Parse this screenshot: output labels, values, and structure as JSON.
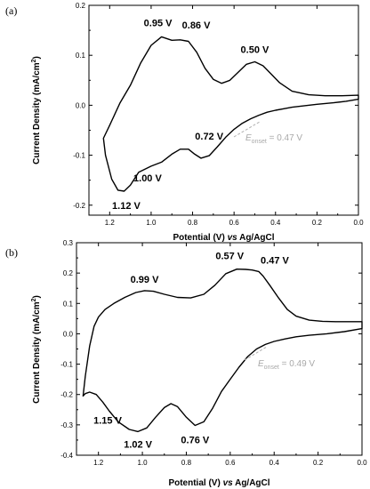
{
  "chart_data": [
    {
      "panel": "(a)",
      "type": "line",
      "xlabel_prefix": "Potential (V) ",
      "xlabel_italic": "vs",
      "xlabel_suffix": " Ag/AgCl",
      "ylabel": "Current Density (mA/cm",
      "ylabel_sup": "2",
      "ylabel_close": ")",
      "xlim": [
        1.3,
        0.0
      ],
      "ylim": [
        -0.22,
        0.2
      ],
      "x_ticks": [
        1.2,
        1.0,
        0.8,
        0.6,
        0.4,
        0.2,
        0.0
      ],
      "x_tick_labels": [
        "1.2",
        "1.0",
        "0.8",
        "0.6",
        "0.4",
        "0.2",
        "0.0"
      ],
      "y_ticks": [
        0.2,
        0.1,
        0.0,
        -0.1,
        -0.2
      ],
      "y_tick_labels": [
        "0.2",
        "0.1",
        "0.0",
        "-0.1",
        "-0.2"
      ],
      "grid": false,
      "curve_x": [
        0.0,
        0.08,
        0.16,
        0.24,
        0.32,
        0.38,
        0.42,
        0.46,
        0.5,
        0.54,
        0.58,
        0.62,
        0.66,
        0.7,
        0.74,
        0.78,
        0.82,
        0.86,
        0.9,
        0.95,
        1.0,
        1.05,
        1.1,
        1.15,
        1.2,
        1.23,
        1.22,
        1.19,
        1.16,
        1.13,
        1.1,
        1.06,
        1.0,
        0.95,
        0.9,
        0.86,
        0.82,
        0.79,
        0.76,
        0.72,
        0.68,
        0.64,
        0.6,
        0.56,
        0.52,
        0.48,
        0.44,
        0.4,
        0.36,
        0.32,
        0.26,
        0.2,
        0.12,
        0.06,
        0.0
      ],
      "curve_y": [
        0.02,
        0.019,
        0.019,
        0.021,
        0.028,
        0.045,
        0.062,
        0.079,
        0.087,
        0.082,
        0.066,
        0.05,
        0.044,
        0.052,
        0.074,
        0.106,
        0.128,
        0.131,
        0.13,
        0.137,
        0.12,
        0.085,
        0.04,
        0.005,
        -0.04,
        -0.066,
        -0.1,
        -0.148,
        -0.17,
        -0.172,
        -0.16,
        -0.134,
        -0.122,
        -0.114,
        -0.098,
        -0.088,
        -0.088,
        -0.098,
        -0.106,
        -0.101,
        -0.083,
        -0.064,
        -0.048,
        -0.036,
        -0.027,
        -0.02,
        -0.014,
        -0.01,
        -0.007,
        -0.004,
        -0.001,
        0.002,
        0.005,
        0.008,
        0.012
      ],
      "peak_labels": [
        {
          "text": "0.95 V",
          "x": 0.95,
          "y": 0.137
        },
        {
          "text": "0.86 V",
          "x": 0.86,
          "y": 0.131
        },
        {
          "text": "0.50 V",
          "x": 0.5,
          "y": 0.087
        },
        {
          "text": "1.12 V",
          "x": 1.12,
          "y": -0.172
        },
        {
          "text": "1.00 V",
          "x": 1.0,
          "y": -0.122
        },
        {
          "text": "0.72 V",
          "x": 0.72,
          "y": -0.101
        }
      ],
      "onset": {
        "label_main": "E",
        "label_sub": "onset",
        "label_value": " = 0.47 V",
        "x": 0.47,
        "y": -0.016
      }
    },
    {
      "panel": "(b)",
      "type": "line",
      "xlabel_prefix": "Potential (V) ",
      "xlabel_italic": "vs",
      "xlabel_suffix": " Ag/AgCl",
      "ylabel": "Current Density (mA/cm",
      "ylabel_sup": "2",
      "ylabel_close": ")",
      "xlim": [
        1.3,
        0.0
      ],
      "ylim": [
        -0.4,
        0.3
      ],
      "x_ticks": [
        1.2,
        1.0,
        0.8,
        0.6,
        0.4,
        0.2,
        0.0
      ],
      "x_tick_labels": [
        "1.2",
        "1.0",
        "0.8",
        "0.6",
        "0.4",
        "0.2",
        "0.0"
      ],
      "y_ticks": [
        0.3,
        0.2,
        0.1,
        0.0,
        -0.1,
        -0.2,
        -0.3,
        -0.4
      ],
      "y_tick_labels": [
        "0.3",
        "0.2",
        "0.1",
        "0.0",
        "-0.1",
        "-0.2",
        "-0.3",
        "-0.4"
      ],
      "grid": false,
      "curve_x": [
        0.0,
        0.06,
        0.12,
        0.18,
        0.24,
        0.3,
        0.34,
        0.38,
        0.42,
        0.45,
        0.47,
        0.5,
        0.53,
        0.57,
        0.62,
        0.67,
        0.72,
        0.78,
        0.84,
        0.9,
        0.95,
        0.99,
        1.03,
        1.08,
        1.13,
        1.17,
        1.2,
        1.22,
        1.24,
        1.26,
        1.27,
        1.26,
        1.24,
        1.21,
        1.18,
        1.15,
        1.11,
        1.06,
        1.02,
        0.98,
        0.94,
        0.9,
        0.87,
        0.84,
        0.8,
        0.76,
        0.72,
        0.68,
        0.64,
        0.6,
        0.56,
        0.52,
        0.48,
        0.44,
        0.4,
        0.35,
        0.3,
        0.24,
        0.16,
        0.08,
        0.0
      ],
      "curve_y": [
        0.04,
        0.04,
        0.04,
        0.041,
        0.045,
        0.058,
        0.08,
        0.118,
        0.16,
        0.19,
        0.205,
        0.21,
        0.212,
        0.213,
        0.198,
        0.16,
        0.13,
        0.118,
        0.12,
        0.13,
        0.14,
        0.142,
        0.136,
        0.12,
        0.1,
        0.08,
        0.055,
        0.025,
        -0.04,
        -0.14,
        -0.205,
        -0.197,
        -0.192,
        -0.2,
        -0.225,
        -0.255,
        -0.29,
        -0.315,
        -0.322,
        -0.31,
        -0.275,
        -0.243,
        -0.23,
        -0.24,
        -0.275,
        -0.302,
        -0.29,
        -0.245,
        -0.19,
        -0.15,
        -0.11,
        -0.075,
        -0.05,
        -0.035,
        -0.025,
        -0.017,
        -0.01,
        -0.005,
        0.0,
        0.007,
        0.017
      ],
      "peak_labels": [
        {
          "text": "0.99 V",
          "x": 0.99,
          "y": 0.142
        },
        {
          "text": "0.57 V",
          "x": 0.57,
          "y": 0.213
        },
        {
          "text": "0.47 V",
          "x": 0.47,
          "y": 0.205
        },
        {
          "text": "1.15 V",
          "x": 1.15,
          "y": -0.255
        },
        {
          "text": "1.02 V",
          "x": 1.02,
          "y": -0.322
        },
        {
          "text": "0.76 V",
          "x": 0.76,
          "y": -0.302
        }
      ],
      "onset": {
        "label_main": "E",
        "label_sub": "onset",
        "label_value": " = 0.49 V",
        "x": 0.49,
        "y": -0.04
      }
    }
  ]
}
